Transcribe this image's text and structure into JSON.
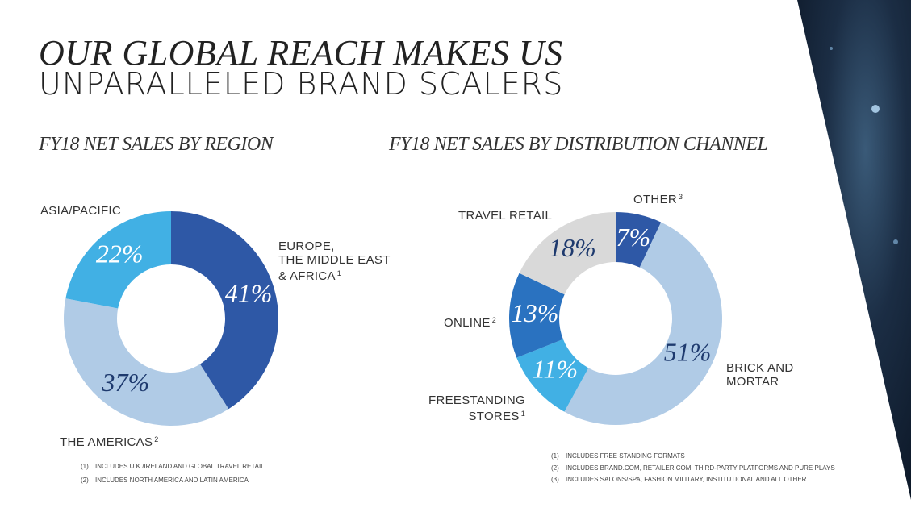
{
  "header": {
    "line1": "OUR GLOBAL REACH MAKES US",
    "line2": "UNPARALLELED BRAND SCALERS"
  },
  "chart_data": [
    {
      "type": "pie",
      "title": "FY18 NET SALES BY REGION",
      "categories": [
        "EUROPE,\nTHE MIDDLE EAST\n& AFRICA",
        "THE AMERICAS",
        "ASIA/PACIFIC"
      ],
      "notes": [
        "1",
        "2",
        null
      ],
      "values": [
        41,
        37,
        22
      ],
      "value_labels": [
        "41%",
        "37%",
        "22%"
      ],
      "colors": [
        "#2e58a6",
        "#b0cbe6",
        "#41b0e4"
      ],
      "footnotes": [
        {
          "marker": "(1)",
          "text": "INCLUDES U.K./IRELAND AND GLOBAL TRAVEL RETAIL"
        },
        {
          "marker": "(2)",
          "text": "INCLUDES NORTH AMERICA AND LATIN AMERICA"
        }
      ]
    },
    {
      "type": "pie",
      "title": "FY18 NET SALES BY DISTRIBUTION CHANNEL",
      "categories": [
        "OTHER",
        "BRICK AND\nMORTAR",
        "FREESTANDING\nSTORES",
        "ONLINE",
        "TRAVEL RETAIL"
      ],
      "notes": [
        "3",
        null,
        "1",
        "2",
        null
      ],
      "values": [
        7,
        51,
        11,
        13,
        18
      ],
      "value_labels": [
        "7%",
        "51%",
        "11%",
        "13%",
        "18%"
      ],
      "colors": [
        "#2e58a6",
        "#b0cbe6",
        "#41b0e4",
        "#2a72c0",
        "#d9d9d9"
      ],
      "footnotes": [
        {
          "marker": "(1)",
          "text": "INCLUDES FREE STANDING FORMATS"
        },
        {
          "marker": "(2)",
          "text": "INCLUDES BRAND.COM, RETAILER.COM, THIRD-PARTY PLATFORMS AND PURE PLAYS"
        },
        {
          "marker": "(3)",
          "text": "INCLUDES SALONS/SPA, FASHION MILITARY, INSTITUTIONAL AND ALL OTHER"
        }
      ]
    }
  ]
}
